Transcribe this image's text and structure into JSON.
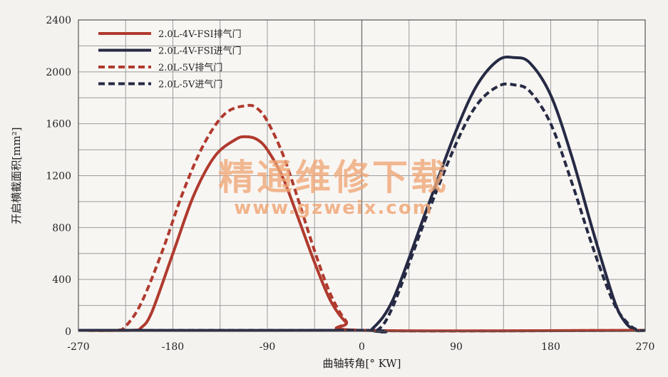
{
  "chart_data": {
    "type": "line",
    "title": "",
    "xlabel": "曲轴转角[° KW]",
    "ylabel": "开启横截面积[mm²]",
    "xlim": [
      -270,
      270
    ],
    "ylim": [
      0,
      2400
    ],
    "xticks": [
      -270,
      -180,
      -90,
      0,
      90,
      180,
      270
    ],
    "yticks": [
      0,
      400,
      800,
      1200,
      1600,
      2000,
      2400
    ],
    "grid": true,
    "legend_position": "top-left",
    "colors": {
      "red": "#b03a2e",
      "navy": "#262a44"
    },
    "series": [
      {
        "name": "2.0L-4V-FSI排气门",
        "color": "#b03a2e",
        "style": "solid",
        "x": [
          -270,
          -220,
          -210,
          -200,
          -180,
          -160,
          -140,
          -120,
          -110,
          -100,
          -90,
          -75,
          -60,
          -45,
          -30,
          -15,
          0,
          270
        ],
        "y": [
          0,
          0,
          30,
          150,
          600,
          1050,
          1350,
          1480,
          1500,
          1480,
          1400,
          1180,
          860,
          530,
          240,
          70,
          0,
          0
        ]
      },
      {
        "name": "2.0L-4V-FSI进气门",
        "color": "#262a44",
        "style": "solid",
        "x": [
          -270,
          0,
          10,
          30,
          60,
          90,
          110,
          130,
          145,
          160,
          180,
          200,
          220,
          240,
          250,
          260,
          270
        ],
        "y": [
          0,
          0,
          20,
          250,
          900,
          1550,
          1900,
          2090,
          2110,
          2070,
          1820,
          1350,
          780,
          250,
          80,
          10,
          0
        ]
      },
      {
        "name": "2.0L-5V排气门",
        "color": "#b03a2e",
        "style": "dashed",
        "x": [
          -270,
          -235,
          -225,
          -210,
          -190,
          -170,
          -150,
          -130,
          -110,
          -100,
          -90,
          -75,
          -60,
          -45,
          -30,
          -15,
          0,
          270
        ],
        "y": [
          0,
          0,
          40,
          220,
          620,
          1080,
          1450,
          1680,
          1740,
          1720,
          1620,
          1360,
          1000,
          620,
          290,
          80,
          0,
          0
        ]
      },
      {
        "name": "2.0L-5V进气门",
        "color": "#262a44",
        "style": "dashed",
        "x": [
          -270,
          0,
          15,
          30,
          60,
          90,
          110,
          130,
          145,
          160,
          180,
          200,
          220,
          240,
          255,
          265,
          270
        ],
        "y": [
          0,
          0,
          10,
          200,
          850,
          1450,
          1750,
          1890,
          1900,
          1850,
          1600,
          1150,
          650,
          220,
          50,
          5,
          0
        ]
      }
    ]
  },
  "watermark": {
    "cn": "精通维修下载",
    "url": "www.gzweix.com"
  }
}
